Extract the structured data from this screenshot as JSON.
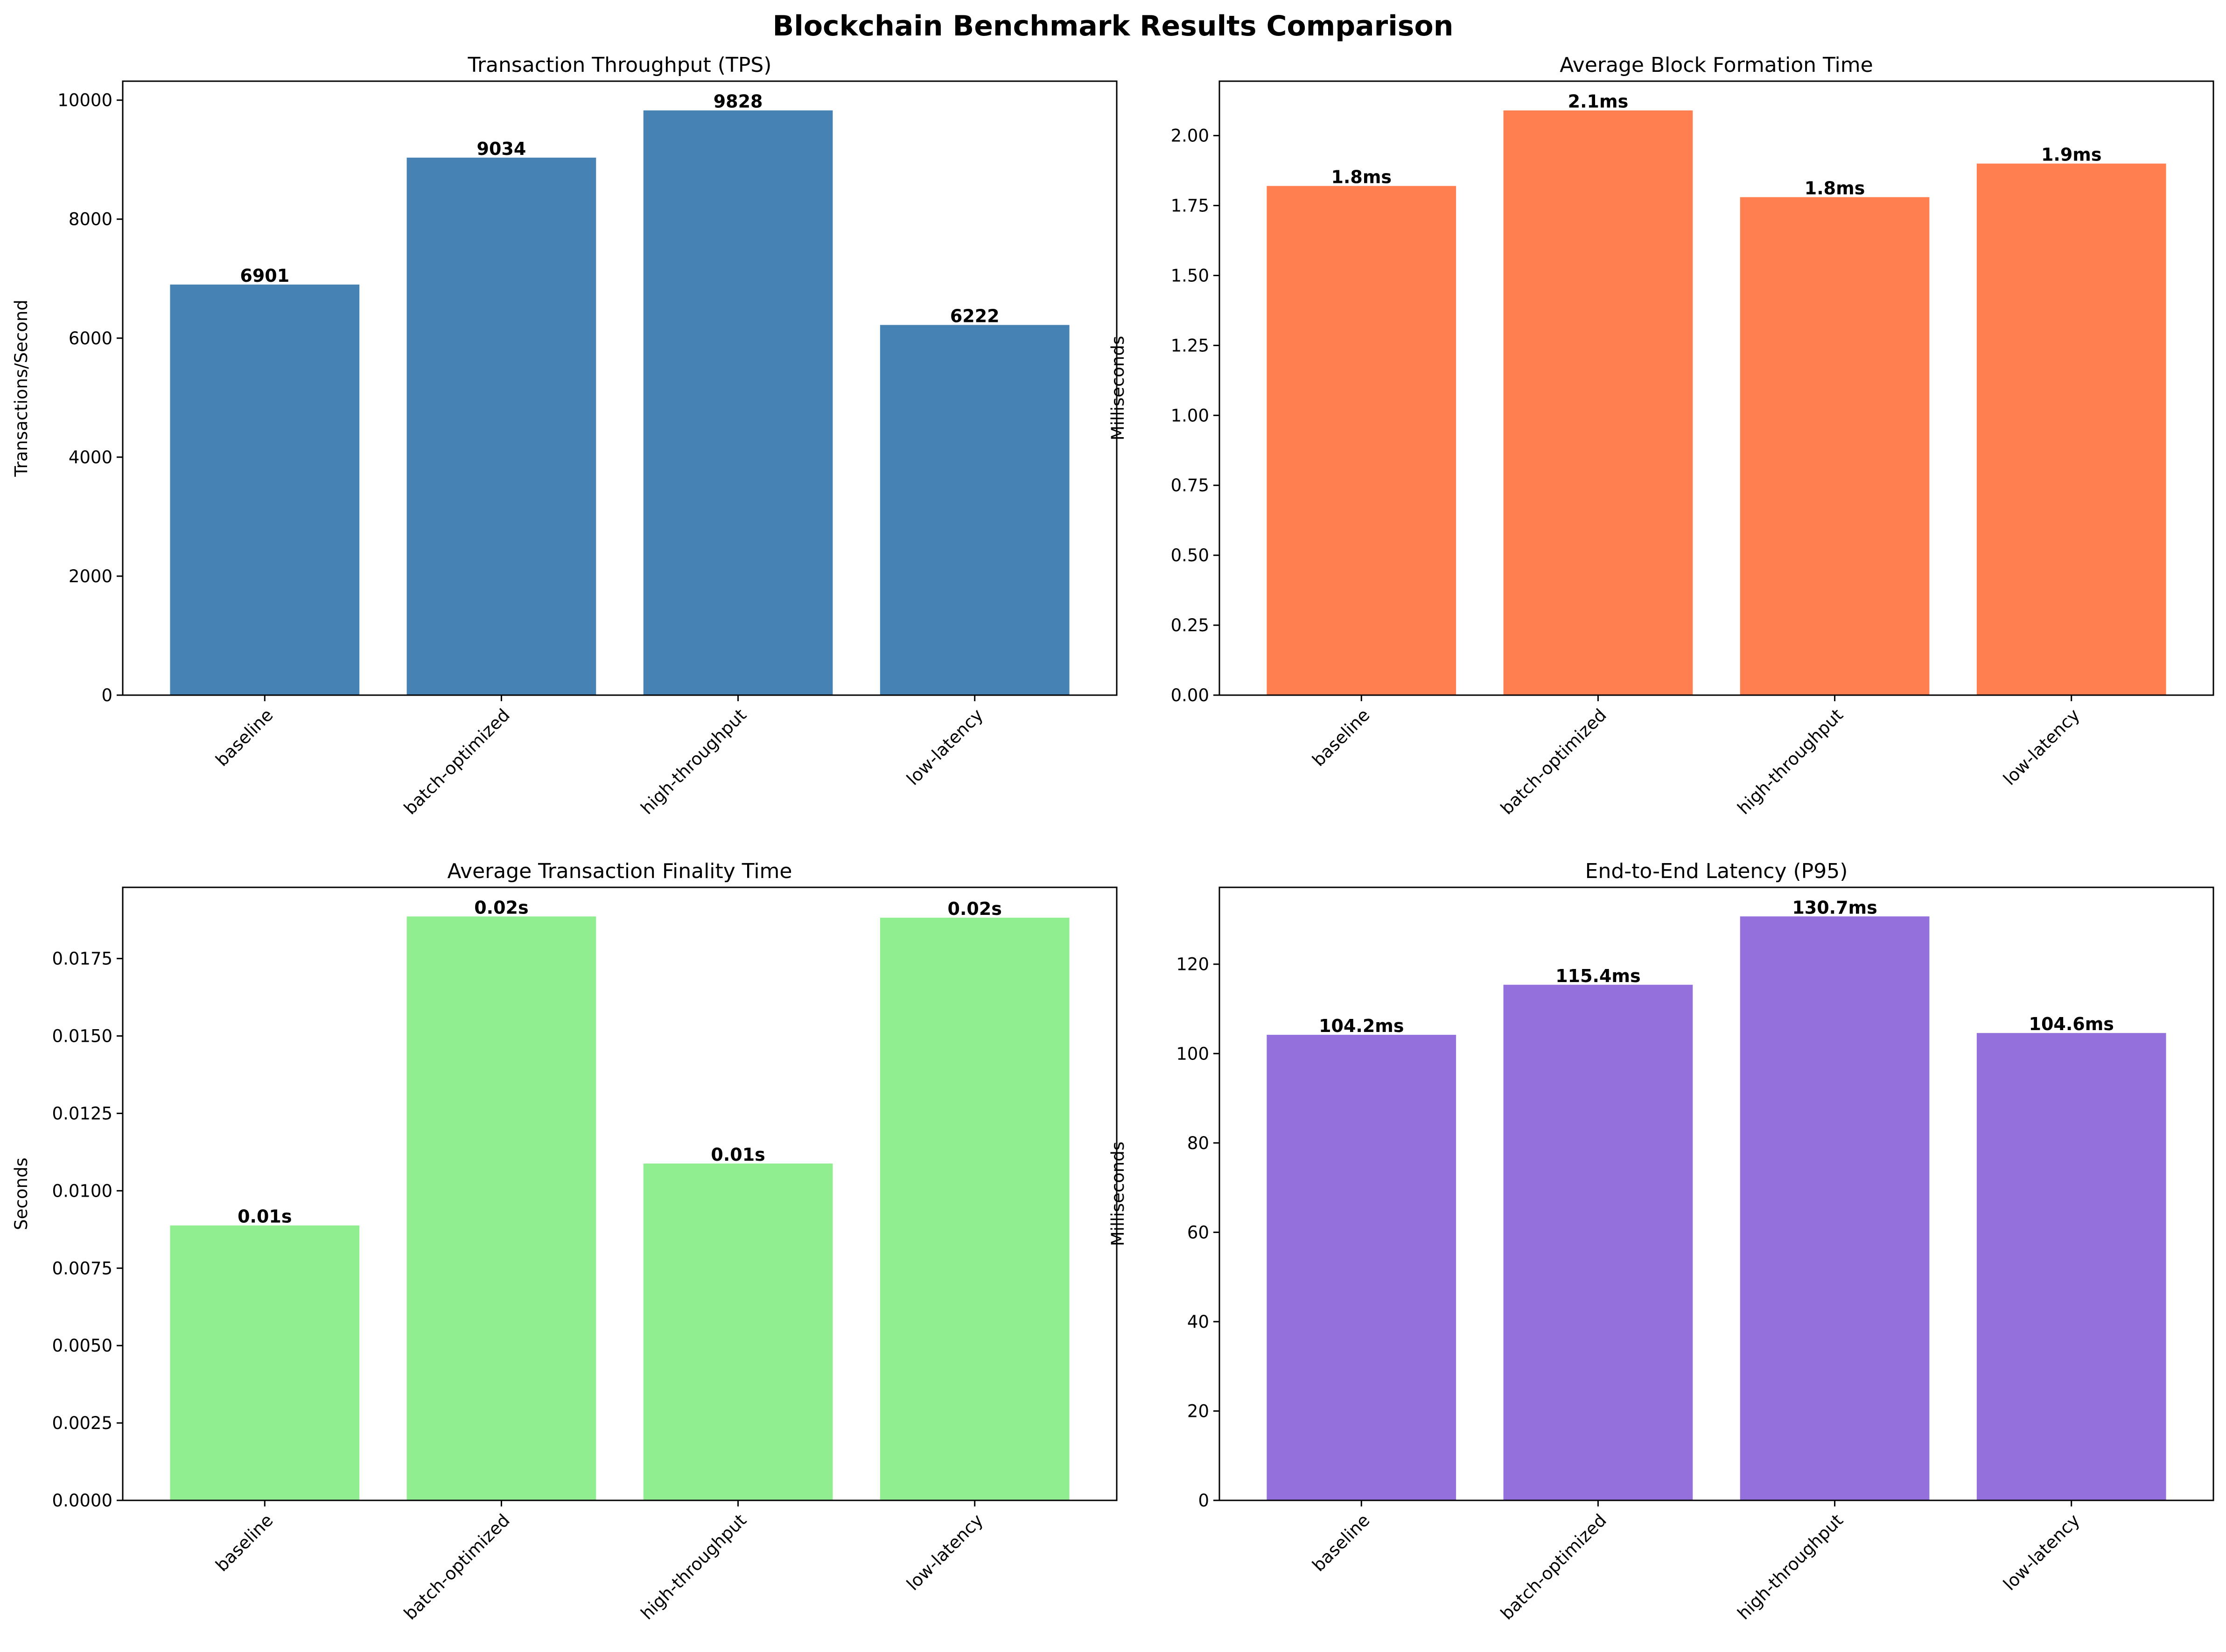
{
  "title": "Blockchain Benchmark Results Comparison",
  "chart_data": [
    {
      "type": "bar",
      "title": "Transaction Throughput (TPS)",
      "xlabel": "",
      "ylabel": "Transactions/Second",
      "categories": [
        "baseline",
        "batch-optimized",
        "high-throughput",
        "low-latency"
      ],
      "values": [
        6901,
        9034,
        9828,
        6222
      ],
      "value_labels": [
        "6901",
        "9034",
        "9828",
        "6222"
      ],
      "ylim": [
        0,
        10319
      ],
      "yticks": [
        0,
        2000,
        4000,
        6000,
        8000,
        10000
      ],
      "ytick_labels": [
        "0",
        "2000",
        "4000",
        "6000",
        "8000",
        "10000"
      ],
      "color": "#4682b4",
      "grid": false
    },
    {
      "type": "bar",
      "title": "Average Block Formation Time",
      "xlabel": "",
      "ylabel": "Milliseconds",
      "categories": [
        "baseline",
        "batch-optimized",
        "high-throughput",
        "low-latency"
      ],
      "values": [
        1.82,
        2.09,
        1.78,
        1.9
      ],
      "value_labels": [
        "1.8ms",
        "2.1ms",
        "1.8ms",
        "1.9ms"
      ],
      "ylim": [
        0,
        2.1945
      ],
      "yticks": [
        0,
        0.25,
        0.5,
        0.75,
        1.0,
        1.25,
        1.5,
        1.75,
        2.0
      ],
      "ytick_labels": [
        "0.00",
        "0.25",
        "0.50",
        "0.75",
        "1.00",
        "1.25",
        "1.50",
        "1.75",
        "2.00"
      ],
      "color": "#ff7f50",
      "grid": false
    },
    {
      "type": "bar",
      "title": "Average Transaction Finality Time",
      "xlabel": "",
      "ylabel": "Seconds",
      "categories": [
        "baseline",
        "batch-optimized",
        "high-throughput",
        "low-latency"
      ],
      "values": [
        0.00888,
        0.01886,
        0.01088,
        0.01882
      ],
      "value_labels": [
        "0.01s",
        "0.02s",
        "0.01s",
        "0.02s"
      ],
      "ylim": [
        0,
        0.0198
      ],
      "yticks": [
        0,
        0.0025,
        0.005,
        0.0075,
        0.01,
        0.0125,
        0.015,
        0.0175
      ],
      "ytick_labels": [
        "0.0000",
        "0.0025",
        "0.0050",
        "0.0075",
        "0.0100",
        "0.0125",
        "0.0150",
        "0.0175"
      ],
      "color": "#90ee90",
      "grid": false
    },
    {
      "type": "bar",
      "title": "End-to-End Latency (P95)",
      "xlabel": "",
      "ylabel": "Milliseconds",
      "categories": [
        "baseline",
        "batch-optimized",
        "high-throughput",
        "low-latency"
      ],
      "values": [
        104.2,
        115.4,
        130.7,
        104.6
      ],
      "value_labels": [
        "104.2ms",
        "115.4ms",
        "130.7ms",
        "104.6ms"
      ],
      "ylim": [
        0,
        137.2
      ],
      "yticks": [
        0,
        20,
        40,
        60,
        80,
        100,
        120
      ],
      "ytick_labels": [
        "0",
        "20",
        "40",
        "60",
        "80",
        "100",
        "120"
      ],
      "color": "#9370db",
      "grid": false
    }
  ]
}
